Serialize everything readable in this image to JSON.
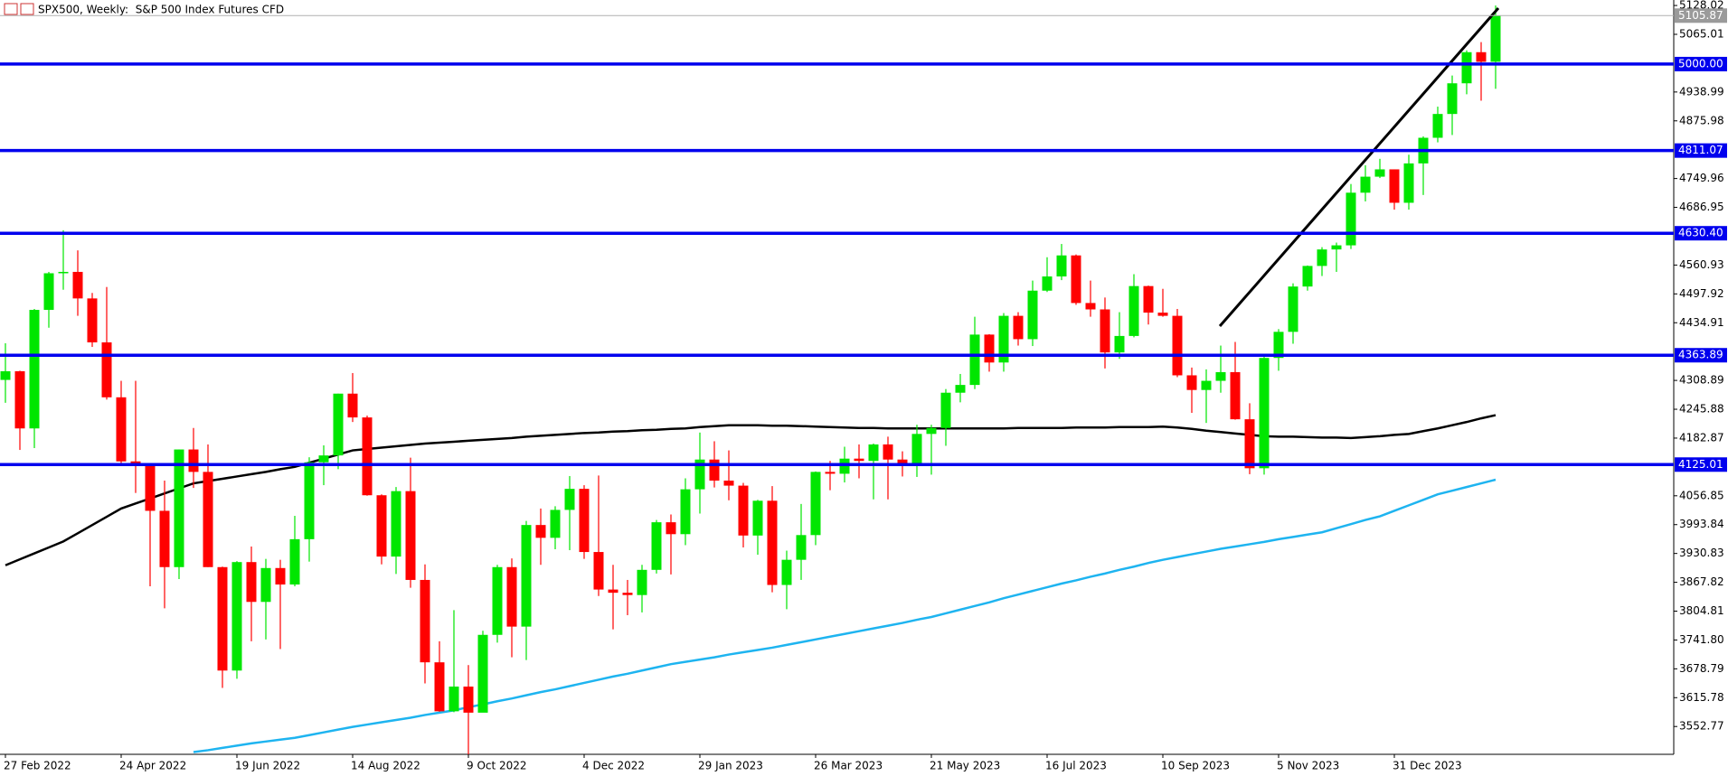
{
  "chart_data": {
    "type": "candlestick",
    "title": "SPX500, Weekly:  S&P 500 Index Futures CFD",
    "categories": [
      "27 Feb 2022",
      null,
      null,
      null,
      null,
      null,
      null,
      null,
      "24 Apr 2022",
      null,
      null,
      null,
      null,
      null,
      null,
      null,
      "19 Jun 2022",
      null,
      null,
      null,
      null,
      null,
      null,
      null,
      "14 Aug 2022",
      null,
      null,
      null,
      null,
      null,
      null,
      null,
      "9 Oct 2022",
      null,
      null,
      null,
      null,
      null,
      null,
      null,
      "4 Dec 2022",
      null,
      null,
      null,
      null,
      null,
      null,
      null,
      "29 Jan 2023",
      null,
      null,
      null,
      null,
      null,
      null,
      null,
      "26 Mar 2023",
      null,
      null,
      null,
      null,
      null,
      null,
      null,
      "21 May 2023",
      null,
      null,
      null,
      null,
      null,
      null,
      null,
      "16 Jul 2023",
      null,
      null,
      null,
      null,
      null,
      null,
      null,
      "10 Sep 2023",
      null,
      null,
      null,
      null,
      null,
      null,
      null,
      "5 Nov 2023",
      null,
      null,
      null,
      null,
      null,
      null,
      null,
      "31 Dec 2023",
      null,
      null,
      null,
      null,
      null,
      null,
      null
    ],
    "open": [
      4310,
      4329,
      4204,
      4463,
      4543,
      4546,
      4488,
      4392,
      4272,
      4132,
      4123,
      4024,
      3901,
      4158,
      4109,
      3901,
      3675,
      3912,
      3825,
      3899,
      3863,
      3962,
      4130,
      4145,
      4280,
      4228,
      4058,
      3924,
      4067,
      3873,
      3693,
      3586,
      3640,
      3583,
      3753,
      3901,
      3771,
      3993,
      3965,
      4026,
      4072,
      3934,
      3852,
      3845,
      3840,
      3895,
      3999,
      3973,
      4071,
      4136,
      4090,
      4079,
      3970,
      4046,
      3862,
      3917,
      3971,
      4109,
      4105,
      4138,
      4133,
      4169,
      4136,
      4124,
      4192,
      4205,
      4282,
      4299,
      4409,
      4348,
      4450,
      4399,
      4505,
      4536,
      4582,
      4478,
      4464,
      4370,
      4406,
      4515,
      4457,
      4450,
      4320,
      4288,
      4308,
      4327,
      4224,
      4117,
      4358,
      4415,
      4514,
      4559,
      4595,
      4604,
      4719,
      4754,
      4770,
      4697,
      4783,
      4839,
      4891,
      4958,
      5026,
      5005
    ],
    "high": [
      4390,
      4330,
      4465,
      4546,
      4637,
      4593,
      4500,
      4513,
      4308,
      4308,
      4123,
      4090,
      4158,
      4205,
      4169,
      3902,
      3914,
      3946,
      3919,
      3917,
      4013,
      4141,
      4167,
      4280,
      4325,
      4232,
      4060,
      4076,
      4140,
      3907,
      3739,
      3807,
      3687,
      3762,
      3906,
      3920,
      4002,
      4029,
      4034,
      4100,
      4080,
      4101,
      3906,
      3873,
      3906,
      4004,
      4016,
      4095,
      4195,
      4176,
      4156,
      4085,
      4048,
      4078,
      3937,
      4039,
      4110,
      4133,
      4164,
      4169,
      4171,
      4186,
      4154,
      4212,
      4212,
      4290,
      4323,
      4448,
      4410,
      4456,
      4458,
      4527,
      4578,
      4607,
      4584,
      4527,
      4490,
      4458,
      4541,
      4516,
      4509,
      4465,
      4337,
      4333,
      4385,
      4393,
      4259,
      4366,
      4421,
      4521,
      4560,
      4600,
      4610,
      4738,
      4779,
      4793,
      4770,
      4802,
      4842,
      4907,
      4975,
      5030,
      5048,
      5128
    ],
    "low": [
      4260,
      4157,
      4161,
      4424,
      4507,
      4450,
      4382,
      4267,
      4128,
      4063,
      3859,
      3811,
      3875,
      4074,
      3901,
      3637,
      3657,
      3739,
      3743,
      3722,
      3859,
      3913,
      4080,
      4115,
      4218,
      4057,
      3907,
      3886,
      3856,
      3647,
      3585,
      3584,
      3491,
      3587,
      3736,
      3704,
      3698,
      3906,
      3940,
      3938,
      3919,
      3838,
      3765,
      3796,
      3802,
      3887,
      3885,
      3949,
      4018,
      4075,
      4047,
      3944,
      3928,
      3846,
      3809,
      3873,
      3949,
      4069,
      4086,
      4095,
      4049,
      4049,
      4099,
      4098,
      4103,
      4166,
      4261,
      4290,
      4328,
      4328,
      4385,
      4384,
      4502,
      4528,
      4474,
      4448,
      4335,
      4356,
      4403,
      4431,
      4448,
      4316,
      4238,
      4216,
      4282,
      4223,
      4104,
      4103,
      4330,
      4389,
      4505,
      4537,
      4546,
      4596,
      4700,
      4751,
      4682,
      4682,
      4714,
      4829,
      4845,
      4934,
      4920,
      4946
    ],
    "close": [
      4329,
      4204,
      4463,
      4543,
      4546,
      4488,
      4392,
      4272,
      4132,
      4123,
      4024,
      3901,
      4158,
      4109,
      3901,
      3675,
      3912,
      3825,
      3899,
      3863,
      3962,
      4130,
      4145,
      4280,
      4228,
      4058,
      3924,
      4067,
      3873,
      3693,
      3586,
      3640,
      3583,
      3753,
      3901,
      3771,
      3993,
      3965,
      4026,
      4072,
      3934,
      3852,
      3845,
      3840,
      3895,
      3999,
      3973,
      4071,
      4136,
      4090,
      4079,
      3970,
      4046,
      3862,
      3917,
      3971,
      4109,
      4105,
      4138,
      4133,
      4169,
      4136,
      4124,
      4192,
      4205,
      4282,
      4299,
      4409,
      4348,
      4450,
      4399,
      4505,
      4536,
      4582,
      4478,
      4464,
      4370,
      4406,
      4515,
      4457,
      4450,
      4320,
      4288,
      4308,
      4327,
      4224,
      4117,
      4358,
      4415,
      4514,
      4559,
      4595,
      4604,
      4719,
      4754,
      4770,
      4697,
      4783,
      4839,
      4891,
      4958,
      5026,
      5005,
      5105.87
    ],
    "up_color": "#00e600",
    "down_color": "#ff0000",
    "overlays": [
      {
        "color": "#000000",
        "values": [
          3905,
          3918,
          3931,
          3944,
          3957,
          3975,
          3993,
          4011,
          4029,
          4040,
          4051,
          4062,
          4073,
          4084,
          4089,
          4094,
          4099,
          4104,
          4109,
          4115,
          4120,
          4129,
          4138,
          4147,
          4156,
          4159,
          4162,
          4165,
          4168,
          4171,
          4173,
          4175,
          4177,
          4179,
          4181,
          4183,
          4186,
          4188,
          4190,
          4192,
          4194,
          4195,
          4197,
          4198,
          4200,
          4201,
          4203,
          4204,
          4207,
          4209,
          4211,
          4211,
          4211,
          4210,
          4210,
          4209,
          4208,
          4207,
          4206,
          4205,
          4205,
          4204,
          4204,
          4204,
          4204,
          4204,
          4204,
          4204,
          4204,
          4204,
          4205,
          4205,
          4205,
          4205,
          4206,
          4206,
          4206,
          4207,
          4207,
          4207,
          4208,
          4206,
          4203,
          4199,
          4196,
          4193,
          4190,
          4187,
          4186,
          4186,
          4185,
          4184,
          4184,
          4183,
          4185,
          4187,
          4190,
          4192,
          4198,
          4204,
          4211,
          4218,
          4226,
          4233
        ]
      },
      {
        "color": "#1eb4f0",
        "values": [
          null,
          null,
          null,
          null,
          null,
          null,
          null,
          null,
          null,
          null,
          null,
          null,
          null,
          3497,
          3501,
          3506,
          3511,
          3516,
          3520,
          3524,
          3528,
          3534,
          3540,
          3546,
          3552,
          3557,
          3562,
          3567,
          3572,
          3578,
          3583,
          3588,
          3595,
          3601,
          3608,
          3614,
          3621,
          3628,
          3634,
          3641,
          3648,
          3655,
          3662,
          3668,
          3675,
          3682,
          3689,
          3694,
          3699,
          3704,
          3710,
          3715,
          3720,
          3725,
          3731,
          3737,
          3743,
          3749,
          3755,
          3761,
          3767,
          3773,
          3779,
          3786,
          3792,
          3800,
          3808,
          3816,
          3824,
          3833,
          3841,
          3849,
          3857,
          3865,
          3872,
          3880,
          3887,
          3895,
          3902,
          3910,
          3917,
          3923,
          3929,
          3935,
          3941,
          3946,
          3951,
          3956,
          3962,
          3967,
          3972,
          3977,
          3986,
          3995,
          4004,
          4012,
          4024,
          4036,
          4048,
          4060,
          4068,
          4076,
          4084,
          4092
        ]
      }
    ],
    "levels": [
      {
        "value": 5000,
        "label": "5000.00"
      },
      4811.07,
      {
        "value": 4630.4,
        "label": "4630.40"
      },
      4363.89,
      4125.01
    ],
    "level_color": "#0000ee",
    "last_price": 5105.87,
    "ylim": [
      3492,
      5140
    ],
    "yticks": [
      5128.02,
      5065.01,
      4938.99,
      4875.98,
      4749.96,
      4686.95,
      4560.93,
      4497.92,
      4434.91,
      4308.89,
      4245.88,
      4182.87,
      4056.85,
      3993.84,
      3930.83,
      3867.82,
      3804.81,
      {
        "value": 3741.8,
        "label": "3741.80"
      },
      3678.79,
      3615.78,
      3552.77
    ]
  }
}
